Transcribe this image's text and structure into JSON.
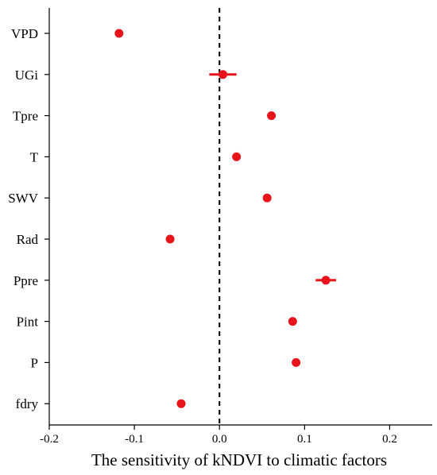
{
  "chart_data": {
    "type": "scatter",
    "title": "",
    "xlabel": "The sensitivity of kNDVI to climatic factors",
    "ylabel": "",
    "xlim": [
      -0.2,
      0.25
    ],
    "x_ticks": [
      -0.2,
      -0.1,
      0.0,
      0.1,
      0.2
    ],
    "x_tick_labels": [
      "-0.2",
      "-0.1",
      "0.0",
      "0.1",
      "0.2"
    ],
    "categories": [
      "VPD",
      "UGi",
      "Tpre",
      "T",
      "SWV",
      "Rad",
      "Ppre",
      "Pint",
      "P",
      "fdry"
    ],
    "values": [
      -0.118,
      0.004,
      0.061,
      0.02,
      0.056,
      -0.058,
      0.125,
      0.086,
      0.09,
      -0.045
    ],
    "errors": [
      0,
      0.016,
      0,
      0,
      0,
      0,
      0.012,
      0,
      0,
      0
    ],
    "reference_line": 0.0,
    "grid": false,
    "marker_color": "#e8141b",
    "reference_line_color": "#000000"
  }
}
